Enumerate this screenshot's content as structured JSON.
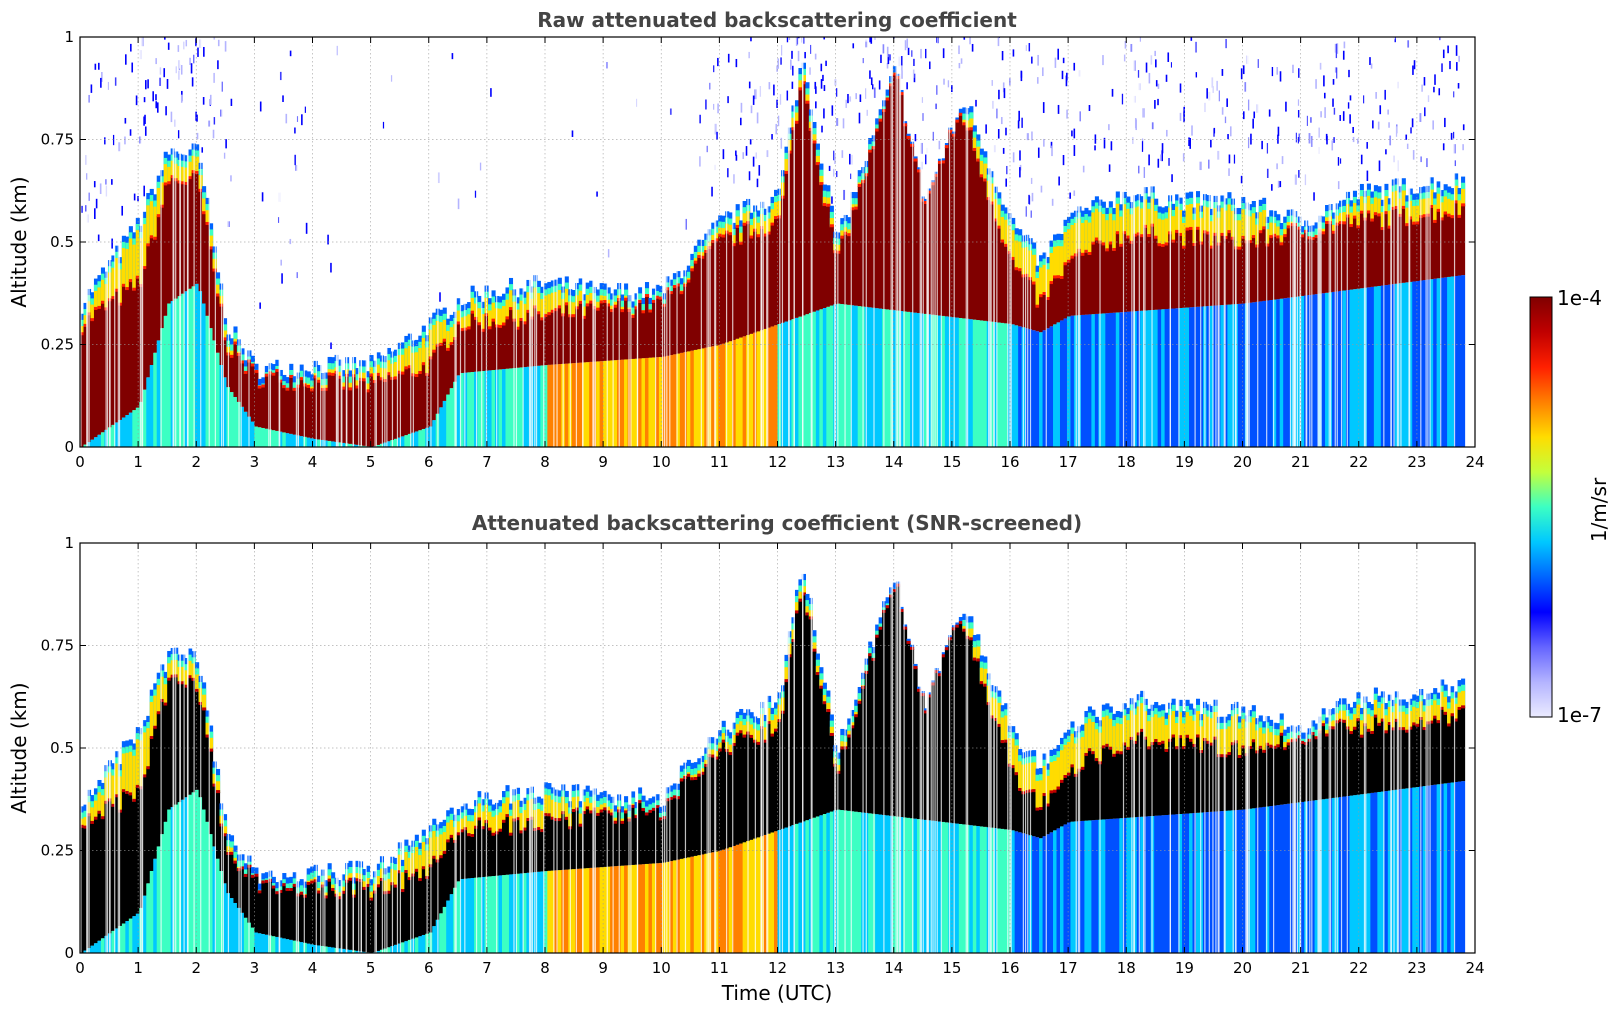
{
  "chart_data": [
    {
      "type": "heatmap",
      "title": "Raw attenuated backscattering coefficient",
      "xlabel": "",
      "ylabel": "Altitude (km)",
      "xlim": [
        0,
        24
      ],
      "ylim": [
        0,
        1
      ],
      "grid": true,
      "xticks": [
        "0",
        "1",
        "2",
        "3",
        "4",
        "5",
        "6",
        "7",
        "8",
        "9",
        "10",
        "11",
        "12",
        "13",
        "14",
        "15",
        "16",
        "17",
        "18",
        "19",
        "20",
        "21",
        "22",
        "23",
        "24"
      ],
      "yticks": [
        "0",
        "0.25",
        "0.5",
        "0.75",
        "1"
      ],
      "layer_top_km": [
        [
          0,
          0.35
        ],
        [
          1,
          0.55
        ],
        [
          1.5,
          0.72
        ],
        [
          2,
          0.72
        ],
        [
          2.5,
          0.3
        ],
        [
          3,
          0.19
        ],
        [
          4,
          0.2
        ],
        [
          5,
          0.2
        ],
        [
          6,
          0.3
        ],
        [
          6.5,
          0.36
        ],
        [
          7,
          0.38
        ],
        [
          8,
          0.4
        ],
        [
          9,
          0.38
        ],
        [
          10,
          0.38
        ],
        [
          11,
          0.55
        ],
        [
          12,
          0.62
        ],
        [
          12.4,
          0.95
        ],
        [
          13,
          0.5
        ],
        [
          14,
          0.92
        ],
        [
          14.5,
          0.6
        ],
        [
          15.2,
          0.85
        ],
        [
          16,
          0.55
        ],
        [
          16.5,
          0.45
        ],
        [
          17,
          0.56
        ],
        [
          18,
          0.62
        ],
        [
          19,
          0.6
        ],
        [
          20,
          0.6
        ],
        [
          21,
          0.55
        ],
        [
          22,
          0.62
        ],
        [
          23,
          0.64
        ],
        [
          23.8,
          0.65
        ]
      ],
      "high_signal_top_km": [
        [
          0,
          0.3
        ],
        [
          1,
          0.4
        ],
        [
          1.5,
          0.65
        ],
        [
          2,
          0.65
        ],
        [
          2.5,
          0.25
        ],
        [
          3,
          0.17
        ],
        [
          4,
          0.16
        ],
        [
          5,
          0.15
        ],
        [
          6,
          0.2
        ],
        [
          6.5,
          0.3
        ],
        [
          8,
          0.32
        ],
        [
          10,
          0.35
        ],
        [
          11,
          0.5
        ],
        [
          12,
          0.55
        ],
        [
          12.4,
          0.9
        ],
        [
          13,
          0.45
        ],
        [
          14,
          0.9
        ],
        [
          15.2,
          0.8
        ],
        [
          16,
          0.45
        ],
        [
          16.5,
          0.35
        ],
        [
          17,
          0.45
        ],
        [
          18,
          0.52
        ],
        [
          20,
          0.5
        ],
        [
          22,
          0.55
        ],
        [
          23.8,
          0.58
        ]
      ],
      "high_signal_base_km": [
        [
          0,
          0.0
        ],
        [
          1,
          0.1
        ],
        [
          1.5,
          0.35
        ],
        [
          2,
          0.4
        ],
        [
          2.5,
          0.15
        ],
        [
          3,
          0.05
        ],
        [
          4,
          0.02
        ],
        [
          5,
          0.0
        ],
        [
          6,
          0.05
        ],
        [
          6.5,
          0.18
        ],
        [
          8,
          0.2
        ],
        [
          10,
          0.22
        ],
        [
          11,
          0.25
        ],
        [
          13,
          0.35
        ],
        [
          16,
          0.3
        ],
        [
          16.5,
          0.28
        ],
        [
          17,
          0.32
        ],
        [
          20,
          0.35
        ],
        [
          23.8,
          0.42
        ]
      ]
    },
    {
      "type": "heatmap",
      "title": "Attenuated backscattering coefficient (SNR-screened)",
      "xlabel": "Time (UTC)",
      "ylabel": "Altitude (km)",
      "xlim": [
        0,
        24
      ],
      "ylim": [
        0,
        1
      ],
      "grid": true,
      "xticks": [
        "0",
        "1",
        "2",
        "3",
        "4",
        "5",
        "6",
        "7",
        "8",
        "9",
        "10",
        "11",
        "12",
        "13",
        "14",
        "15",
        "16",
        "17",
        "18",
        "19",
        "20",
        "21",
        "22",
        "23",
        "24"
      ],
      "yticks": [
        "0",
        "0.25",
        "0.5",
        "0.75",
        "1"
      ],
      "saturated_color": "#000000"
    }
  ],
  "colorbar": {
    "label": "1/m/sr",
    "max_label": "1e-4",
    "min_label": "1e-7",
    "colormap": [
      "#ebebff",
      "#b4b4ff",
      "#6464ff",
      "#0000ff",
      "#0064ff",
      "#00c8ff",
      "#3cffc3",
      "#c3ff3c",
      "#ffdc00",
      "#ff8000",
      "#ff2000",
      "#c00000",
      "#800000"
    ]
  }
}
